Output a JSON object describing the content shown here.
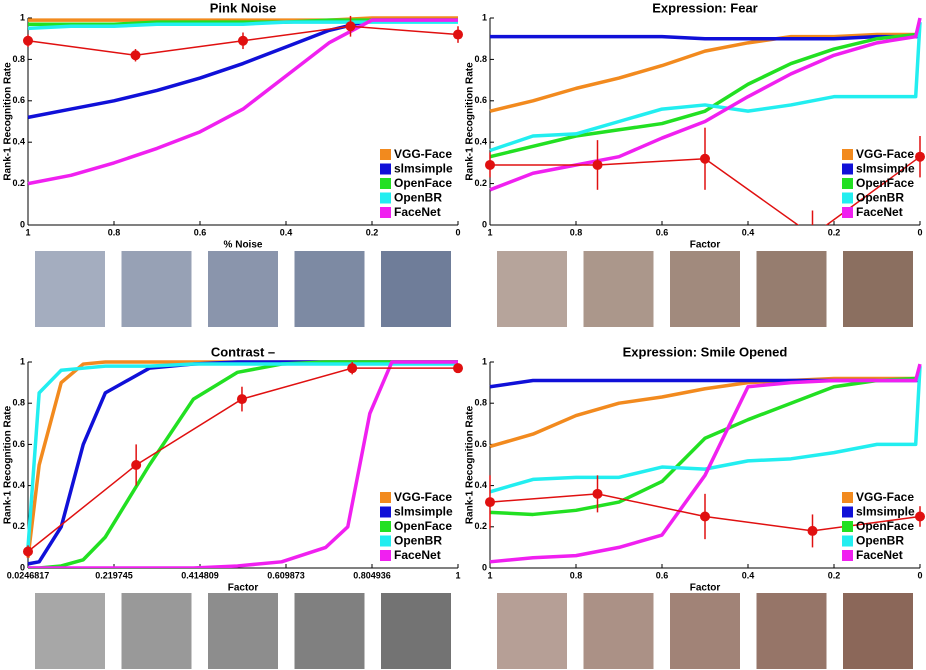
{
  "chart_data": [
    {
      "type": "line",
      "title": "Pink Noise",
      "xlabel": "% Noise",
      "ylabel": "Rank-1 Recognition Rate",
      "xlim": [
        1,
        0
      ],
      "ylim": [
        0,
        1
      ],
      "xticks": [
        1,
        0.8,
        0.6,
        0.4,
        0.2,
        0
      ],
      "yticks": [
        0,
        0.2,
        0.4,
        0.6,
        0.8,
        1
      ],
      "x": [
        1,
        0.9,
        0.8,
        0.7,
        0.6,
        0.5,
        0.4,
        0.3,
        0.2,
        0.1,
        0
      ],
      "series": [
        {
          "name": "VGG-Face",
          "color": "#f28a1e",
          "values": [
            0.99,
            0.99,
            0.99,
            0.99,
            0.99,
            0.99,
            0.99,
            0.99,
            1,
            1,
            1
          ]
        },
        {
          "name": "slmsimple",
          "color": "#1010d8",
          "values": [
            0.52,
            0.56,
            0.6,
            0.65,
            0.71,
            0.78,
            0.86,
            0.94,
            0.99,
            0.99,
            0.99
          ]
        },
        {
          "name": "OpenFace",
          "color": "#22e022",
          "values": [
            0.97,
            0.97,
            0.97,
            0.98,
            0.98,
            0.98,
            0.98,
            0.99,
            0.99,
            0.99,
            0.99
          ]
        },
        {
          "name": "OpenBR",
          "color": "#22eef0",
          "values": [
            0.95,
            0.96,
            0.96,
            0.97,
            0.97,
            0.97,
            0.98,
            0.98,
            0.98,
            0.98,
            0.98
          ]
        },
        {
          "name": "FaceNet",
          "color": "#f020f0",
          "values": [
            0.2,
            0.24,
            0.3,
            0.37,
            0.45,
            0.56,
            0.72,
            0.88,
            0.99,
            0.99,
            0.99
          ]
        }
      ],
      "errorbars": {
        "color": "#e01010",
        "x": [
          1,
          0.75,
          0.5,
          0.25,
          0
        ],
        "values": [
          0.89,
          0.82,
          0.89,
          0.96,
          0.92
        ],
        "errors": [
          0.03,
          0.03,
          0.04,
          0.05,
          0.04
        ]
      }
    },
    {
      "type": "line",
      "title": "Expression: Fear",
      "xlabel": "Factor",
      "ylabel": "Rank-1 Recognition Rate",
      "xlim": [
        1,
        0
      ],
      "ylim": [
        0,
        1
      ],
      "xticks": [
        1,
        0.8,
        0.6,
        0.4,
        0.2,
        0
      ],
      "yticks": [
        0,
        0.2,
        0.4,
        0.6,
        0.8,
        1
      ],
      "x": [
        1,
        0.9,
        0.8,
        0.7,
        0.6,
        0.5,
        0.4,
        0.3,
        0.2,
        0.1,
        0.01,
        0
      ],
      "series": [
        {
          "name": "VGG-Face",
          "color": "#f28a1e",
          "values": [
            0.55,
            0.6,
            0.66,
            0.71,
            0.77,
            0.84,
            0.88,
            0.91,
            0.91,
            0.92,
            0.92,
            0.92
          ]
        },
        {
          "name": "slmsimple",
          "color": "#1010d8",
          "values": [
            0.91,
            0.91,
            0.91,
            0.91,
            0.91,
            0.9,
            0.9,
            0.9,
            0.9,
            0.91,
            0.91,
            0.91
          ]
        },
        {
          "name": "OpenFace",
          "color": "#22e022",
          "values": [
            0.33,
            0.38,
            0.43,
            0.46,
            0.49,
            0.55,
            0.68,
            0.78,
            0.85,
            0.9,
            0.92,
            0.93
          ]
        },
        {
          "name": "OpenBR",
          "color": "#22eef0",
          "values": [
            0.36,
            0.43,
            0.44,
            0.5,
            0.56,
            0.58,
            0.55,
            0.58,
            0.62,
            0.62,
            0.62,
            0.98
          ]
        },
        {
          "name": "FaceNet",
          "color": "#f020f0",
          "values": [
            0.17,
            0.25,
            0.29,
            0.33,
            0.42,
            0.5,
            0.62,
            0.73,
            0.82,
            0.88,
            0.91,
            1
          ]
        }
      ],
      "errorbars": {
        "color": "#e01010",
        "x": [
          1,
          0.75,
          0.5,
          0.25,
          0
        ],
        "values": [
          0.29,
          0.29,
          0.32,
          -0.05,
          0.33
        ],
        "errors": [
          0.06,
          0.12,
          0.15,
          0.12,
          0.1
        ]
      }
    },
    {
      "type": "line",
      "title": "Contrast –",
      "xlabel": "Factor",
      "ylabel": "Rank-1 Recognition Rate",
      "xlim": [
        0.0246817,
        1
      ],
      "ylim": [
        0,
        1
      ],
      "xticks": [
        0.0246817,
        0.219745,
        0.414809,
        0.609873,
        0.804936,
        1
      ],
      "yticks": [
        0,
        0.2,
        0.4,
        0.6,
        0.8,
        1
      ],
      "x": [
        0.0246817,
        0.05,
        0.1,
        0.15,
        0.2,
        0.3,
        0.4,
        0.5,
        0.6,
        0.7,
        0.75,
        0.8,
        0.85,
        0.9,
        1
      ],
      "series": [
        {
          "name": "VGG-Face",
          "color": "#f28a1e",
          "values": [
            0.05,
            0.5,
            0.9,
            0.99,
            1,
            1,
            1,
            1,
            1,
            1,
            1,
            1,
            1,
            1,
            1
          ]
        },
        {
          "name": "slmsimple",
          "color": "#1010d8",
          "values": [
            0.02,
            0.03,
            0.2,
            0.6,
            0.85,
            0.97,
            0.99,
            1,
            1,
            1,
            1,
            1,
            1,
            1,
            1
          ]
        },
        {
          "name": "OpenFace",
          "color": "#22e022",
          "values": [
            0,
            0,
            0.01,
            0.04,
            0.15,
            0.5,
            0.82,
            0.95,
            0.99,
            1,
            1,
            1,
            1,
            1,
            1
          ]
        },
        {
          "name": "OpenBR",
          "color": "#22eef0",
          "values": [
            0.1,
            0.85,
            0.96,
            0.97,
            0.98,
            0.98,
            0.99,
            0.99,
            0.99,
            0.99,
            0.99,
            0.99,
            0.99,
            0.99,
            0.99
          ]
        },
        {
          "name": "FaceNet",
          "color": "#f020f0",
          "values": [
            0,
            0,
            0,
            0,
            0,
            0,
            0,
            0.01,
            0.03,
            0.1,
            0.2,
            0.75,
            1,
            1,
            1
          ]
        }
      ],
      "errorbars": {
        "color": "#e01010",
        "x": [
          0.0246817,
          0.27,
          0.51,
          0.76,
          1
        ],
        "values": [
          0.08,
          0.5,
          0.82,
          0.97,
          0.97
        ],
        "errors": [
          0.03,
          0.1,
          0.06,
          0.03,
          0.02
        ]
      }
    },
    {
      "type": "line",
      "title": "Expression: Smile Opened",
      "xlabel": "Factor",
      "ylabel": "Rank-1 Recognition Rate",
      "xlim": [
        1,
        0
      ],
      "ylim": [
        0,
        1
      ],
      "xticks": [
        1,
        0.8,
        0.6,
        0.4,
        0.2,
        0
      ],
      "yticks": [
        0,
        0.2,
        0.4,
        0.6,
        0.8,
        1
      ],
      "x": [
        1,
        0.9,
        0.8,
        0.7,
        0.6,
        0.5,
        0.4,
        0.3,
        0.2,
        0.1,
        0.01,
        0
      ],
      "series": [
        {
          "name": "VGG-Face",
          "color": "#f28a1e",
          "values": [
            0.59,
            0.65,
            0.74,
            0.8,
            0.83,
            0.87,
            0.9,
            0.91,
            0.92,
            0.92,
            0.92,
            0.92
          ]
        },
        {
          "name": "slmsimple",
          "color": "#1010d8",
          "values": [
            0.88,
            0.91,
            0.91,
            0.91,
            0.91,
            0.91,
            0.91,
            0.91,
            0.91,
            0.91,
            0.91,
            0.91
          ]
        },
        {
          "name": "OpenFace",
          "color": "#22e022",
          "values": [
            0.27,
            0.26,
            0.28,
            0.32,
            0.42,
            0.63,
            0.72,
            0.8,
            0.88,
            0.91,
            0.92,
            0.92
          ]
        },
        {
          "name": "OpenBR",
          "color": "#22eef0",
          "values": [
            0.37,
            0.43,
            0.44,
            0.44,
            0.49,
            0.48,
            0.52,
            0.53,
            0.56,
            0.6,
            0.6,
            0.98
          ]
        },
        {
          "name": "FaceNet",
          "color": "#f020f0",
          "values": [
            0.03,
            0.05,
            0.06,
            0.1,
            0.16,
            0.45,
            0.88,
            0.9,
            0.91,
            0.91,
            0.91,
            0.99
          ]
        }
      ],
      "errorbars": {
        "color": "#e01010",
        "x": [
          1,
          0.75,
          0.5,
          0.25,
          0
        ],
        "values": [
          0.32,
          0.36,
          0.25,
          0.18,
          0.25
        ],
        "errors": [
          0.13,
          0.09,
          0.11,
          0.08,
          0.05
        ]
      }
    }
  ]
}
